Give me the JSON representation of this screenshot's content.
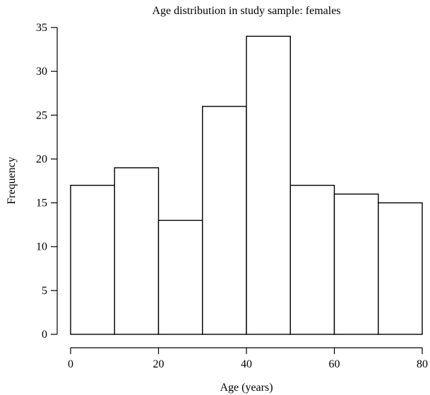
{
  "chart_data": {
    "type": "bar",
    "title": "Age distribution in study sample: females",
    "xlabel": "Age (years)",
    "ylabel": "Frequency",
    "bins": [
      {
        "from": 0,
        "to": 10,
        "count": 17
      },
      {
        "from": 10,
        "to": 20,
        "count": 19
      },
      {
        "from": 20,
        "to": 30,
        "count": 13
      },
      {
        "from": 30,
        "to": 40,
        "count": 26
      },
      {
        "from": 40,
        "to": 50,
        "count": 34
      },
      {
        "from": 50,
        "to": 60,
        "count": 17
      },
      {
        "from": 60,
        "to": 70,
        "count": 16
      },
      {
        "from": 70,
        "to": 80,
        "count": 15
      }
    ],
    "xlim": [
      0,
      80
    ],
    "ylim": [
      0,
      35
    ],
    "xticks": [
      0,
      20,
      40,
      60,
      80
    ],
    "yticks": [
      0,
      5,
      10,
      15,
      20,
      25,
      30,
      35
    ],
    "grid": false,
    "bar_fill": "#ffffff",
    "bar_stroke": "#000000"
  }
}
